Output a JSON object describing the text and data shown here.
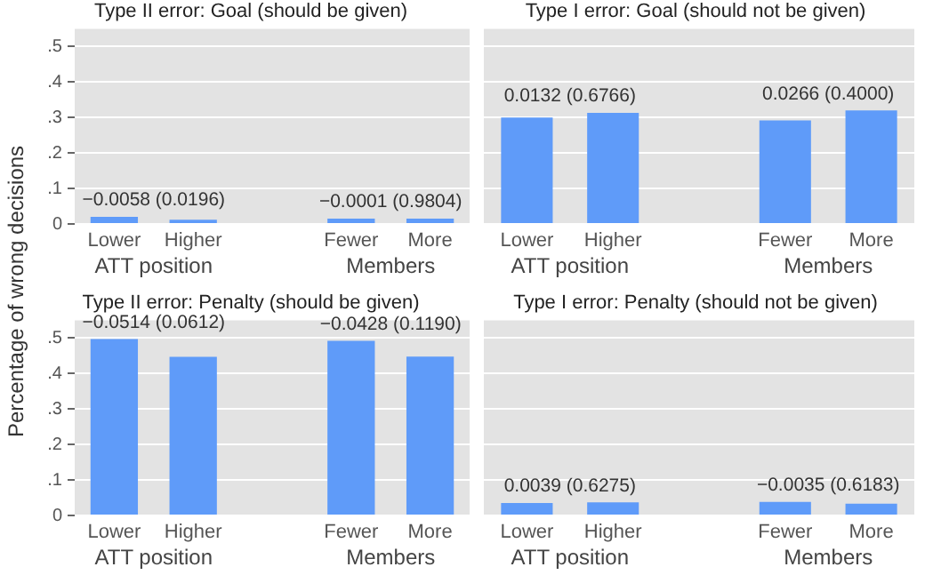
{
  "chart_data": [
    {
      "type": "bar",
      "title": "Type II error: Goal (should be given)",
      "ylabel": "Percentage of wrong decisions",
      "categories": [
        "Lower",
        "Higher",
        null,
        "Fewer",
        "More"
      ],
      "values": [
        0.02,
        0.012,
        null,
        0.015,
        0.015
      ],
      "color": "#5f9bf9",
      "ylim": [
        0,
        0.55
      ],
      "yticks": [
        0,
        {
          "value": 0.1,
          "label": ".1"
        },
        {
          "value": 0.2,
          "label": ".2"
        },
        {
          "value": 0.3,
          "label": ".3"
        },
        {
          "value": 0.4,
          "label": ".4"
        },
        {
          "value": 0.5,
          "label": ".5"
        }
      ],
      "grid": "y",
      "annotations": [
        "−0.0058 (0.0196)",
        "−0.0001 (0.9804)",
        "ATT position",
        "Members"
      ]
    },
    {
      "type": "bar",
      "title": "Type I error: Goal (should not be given)",
      "categories": [
        "Lower",
        "Higher",
        null,
        "Fewer",
        "More"
      ],
      "values": [
        0.3,
        0.313,
        null,
        0.292,
        0.32
      ],
      "color": "#5f9bf9",
      "ylim": [
        0,
        0.55
      ],
      "yticks": [
        {
          "value": 0,
          "label": null
        },
        {
          "value": 0.1,
          "label": null
        },
        {
          "value": 0.2,
          "label": null
        },
        {
          "value": 0.3,
          "label": null
        },
        {
          "value": 0.4,
          "label": null
        },
        {
          "value": 0.5,
          "label": null
        }
      ],
      "grid": "y",
      "tick_labels": "x",
      "annotations": [
        "0.0132 (0.6766)",
        "0.0266 (0.4000)",
        "ATT position",
        "Members"
      ]
    },
    {
      "type": "bar",
      "title": "Type II error: Penalty (should be given)",
      "categories": [
        "Lower",
        "Higher",
        null,
        "Fewer",
        "More"
      ],
      "values": [
        0.497,
        0.447,
        null,
        0.492,
        0.448
      ],
      "color": "#5f9bf9",
      "ylim": [
        0,
        0.55
      ],
      "yticks": [
        0,
        {
          "value": 0.1,
          "label": ".1"
        },
        {
          "value": 0.2,
          "label": ".2"
        },
        {
          "value": 0.3,
          "label": ".3"
        },
        {
          "value": 0.4,
          "label": ".4"
        },
        {
          "value": 0.5,
          "label": ".5"
        }
      ],
      "grid": "y",
      "annotations": [
        "−0.0514 (0.0612)",
        "−0.0428 (0.1190)",
        "ATT position",
        "Members"
      ]
    },
    {
      "type": "bar",
      "title": "Type I error: Penalty (should not be given)",
      "categories": [
        "Lower",
        "Higher",
        null,
        "Fewer",
        "More"
      ],
      "values": [
        0.035,
        0.037,
        null,
        0.038,
        0.033
      ],
      "color": "#5f9bf9",
      "ylim": [
        0,
        0.55
      ],
      "yticks": [
        {
          "value": 0,
          "label": null
        },
        {
          "value": 0.1,
          "label": null
        },
        {
          "value": 0.2,
          "label": null
        },
        {
          "value": 0.3,
          "label": null
        },
        {
          "value": 0.4,
          "label": null
        },
        {
          "value": 0.5,
          "label": null
        }
      ],
      "grid": "y",
      "tick_labels": "x",
      "annotations": [
        "0.0039 (0.6275)",
        "−0.0035 (0.6183)",
        "ATT position",
        "Members"
      ]
    }
  ]
}
